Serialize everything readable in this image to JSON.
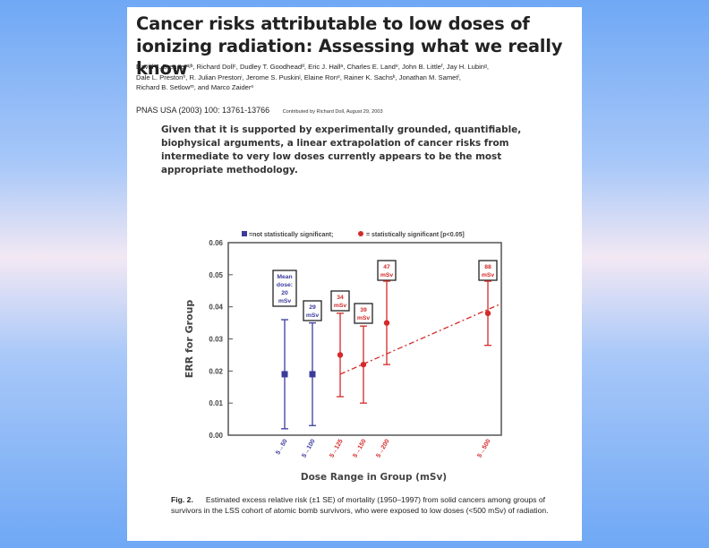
{
  "paper": {
    "title": "Cancer risks attributable to low doses of ionizing radiation: Assessing what we really know",
    "authors_line1": "David J. Brennerᵃʲᵇ, Richard Dollᶜ, Dudley T. Goodheadᵈ, Eric J. Hallᵃ, Charles E. Landᵉ, John B. Littleᶠ, Jay H. Lubinᵍ,",
    "authors_line2": "Dale L. Prestonʰ, R. Julian Prestonⁱ, Jerome S. Puskinʲ, Elaine Ronᵉ, Rainer K. Sachsᵏ, Jonathan M. Sametˡ,",
    "authors_line3": "Richard B. Setlowᵐ, and Marco Zaiderⁿ",
    "citation": "PNAS USA (2003) 100: 13761-13766",
    "contributed": "Contributed by Richard Doll, August 29, 2003",
    "quote": "Given that it is supported by experimentally grounded, quantifiable, biophysical arguments, a linear extrapolation of cancer risks from intermediate to very low doses currently appears to be the most appropriate methodology.",
    "caption_label": "Fig. 2.",
    "caption_text": "Estimated excess relative risk (±1 SE) of mortality (1950–1997) from solid cancers among groups of survivors in the LSS cohort of atomic bomb survivors, who were exposed to low doses (<500 mSv) of radiation."
  },
  "chart_data": {
    "type": "scatter",
    "xlabel": "Dose Range in Group (mSv)",
    "ylabel": "ERR for Group",
    "ylim": [
      0,
      0.06
    ],
    "yticks": [
      "0.00",
      "0.01",
      "0.02",
      "0.03",
      "0.04",
      "0.05",
      "0.06"
    ],
    "legend": {
      "not_significant": "=not statistically significant;",
      "significant": "= statistically significant [p<0.05]"
    },
    "colors": {
      "not_significant": "#3b3b9c",
      "significant": "#d42a2a",
      "axis": "#555555"
    },
    "points": [
      {
        "range": "5→50",
        "err": 0.019,
        "lo": 0.002,
        "hi": 0.036,
        "significant": false,
        "box": [
          "Mean",
          "dose:",
          "20",
          "mSv"
        ]
      },
      {
        "range": "5→100",
        "err": 0.019,
        "lo": 0.003,
        "hi": 0.035,
        "significant": false,
        "box": [
          "29",
          "mSv"
        ]
      },
      {
        "range": "5→125",
        "err": 0.025,
        "lo": 0.012,
        "hi": 0.038,
        "significant": true,
        "box": [
          "34",
          "mSv"
        ]
      },
      {
        "range": "5→150",
        "err": 0.022,
        "lo": 0.01,
        "hi": 0.034,
        "significant": true,
        "box": [
          "39",
          "mSv"
        ]
      },
      {
        "range": "5→200",
        "err": 0.035,
        "lo": 0.022,
        "hi": 0.048,
        "significant": true,
        "box": [
          "47",
          "mSv"
        ]
      },
      {
        "range": "5→500",
        "err": 0.038,
        "lo": 0.028,
        "hi": 0.048,
        "significant": true,
        "box": [
          "88",
          "mSv"
        ]
      }
    ],
    "trend": {
      "from": 0.019,
      "to": 0.041
    }
  }
}
